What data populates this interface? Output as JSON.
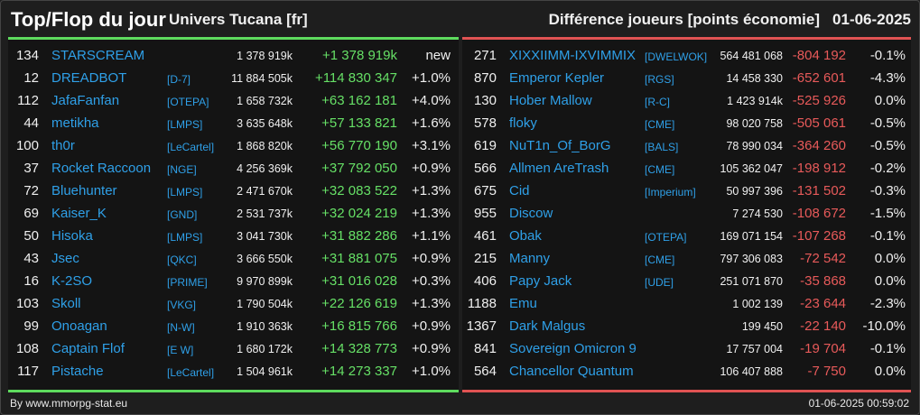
{
  "header": {
    "title": "Top/Flop du jour",
    "universe": "Univers Tucana [fr]",
    "difference_label": "Différence joueurs [points économie]",
    "date": "01-06-2025"
  },
  "colors": {
    "top_accent": "#5edb5e",
    "flop_accent": "#e05353",
    "link": "#2fa0e8",
    "positive": "#66e066",
    "negative": "#e85a5a"
  },
  "top": [
    {
      "rank": "134",
      "name": "STARSCREAM",
      "alliance": "",
      "points": "1 378 919k",
      "delta": "+1 378 919k",
      "pct": "new"
    },
    {
      "rank": "12",
      "name": "DREADBOT",
      "alliance": "[D-7]",
      "points": "11 884 505k",
      "delta": "+114 830 347",
      "pct": "+1.0%"
    },
    {
      "rank": "112",
      "name": "JafaFanfan",
      "alliance": "[OTEPA]",
      "points": "1 658 732k",
      "delta": "+63 162 181",
      "pct": "+4.0%"
    },
    {
      "rank": "44",
      "name": "metikha",
      "alliance": "[LMPS]",
      "points": "3 635 648k",
      "delta": "+57 133 821",
      "pct": "+1.6%"
    },
    {
      "rank": "100",
      "name": "th0r",
      "alliance": "[LeCartel]",
      "points": "1 868 820k",
      "delta": "+56 770 190",
      "pct": "+3.1%"
    },
    {
      "rank": "37",
      "name": "Rocket Raccoon",
      "alliance": "[NGE]",
      "points": "4 256 369k",
      "delta": "+37 792 050",
      "pct": "+0.9%"
    },
    {
      "rank": "72",
      "name": "Bluehunter",
      "alliance": "[LMPS]",
      "points": "2 471 670k",
      "delta": "+32 083 522",
      "pct": "+1.3%"
    },
    {
      "rank": "69",
      "name": "Kaiser_K",
      "alliance": "[GND]",
      "points": "2 531 737k",
      "delta": "+32 024 219",
      "pct": "+1.3%"
    },
    {
      "rank": "50",
      "name": "Hisoka",
      "alliance": "[LMPS]",
      "points": "3 041 730k",
      "delta": "+31 882 286",
      "pct": "+1.1%"
    },
    {
      "rank": "43",
      "name": "Jsec",
      "alliance": "[QKC]",
      "points": "3 666 550k",
      "delta": "+31 881 075",
      "pct": "+0.9%"
    },
    {
      "rank": "16",
      "name": "K-2SO",
      "alliance": "[PRIME]",
      "points": "9 970 899k",
      "delta": "+31 016 028",
      "pct": "+0.3%"
    },
    {
      "rank": "103",
      "name": "Skoll",
      "alliance": "[VKG]",
      "points": "1 790 504k",
      "delta": "+22 126 619",
      "pct": "+1.3%"
    },
    {
      "rank": "99",
      "name": "Onoagan",
      "alliance": "[N-W]",
      "points": "1 910 363k",
      "delta": "+16 815 766",
      "pct": "+0.9%"
    },
    {
      "rank": "108",
      "name": "Captain Flof",
      "alliance": "[E W]",
      "points": "1 680 172k",
      "delta": "+14 328 773",
      "pct": "+0.9%"
    },
    {
      "rank": "117",
      "name": "Pistache",
      "alliance": "[LeCartel]",
      "points": "1 504 961k",
      "delta": "+14 273 337",
      "pct": "+1.0%"
    }
  ],
  "flop": [
    {
      "rank": "271",
      "name": "XIXXIIMM-IXVIMMIX",
      "alliance": "[DWELWOK]",
      "points": "564 481 068",
      "delta": "-804 192",
      "pct": "-0.1%"
    },
    {
      "rank": "870",
      "name": "Emperor Kepler",
      "alliance": "[RGS]",
      "points": "14 458 330",
      "delta": "-652 601",
      "pct": "-4.3%"
    },
    {
      "rank": "130",
      "name": "Hober Mallow",
      "alliance": "[R-C]",
      "points": "1 423 914k",
      "delta": "-525 926",
      "pct": "0.0%"
    },
    {
      "rank": "578",
      "name": "floky",
      "alliance": "[CME]",
      "points": "98 020 758",
      "delta": "-505 061",
      "pct": "-0.5%"
    },
    {
      "rank": "619",
      "name": "NuT1n_Of_BorG",
      "alliance": "[BALS]",
      "points": "78 990 034",
      "delta": "-364 260",
      "pct": "-0.5%"
    },
    {
      "rank": "566",
      "name": "Allmen AreTrash",
      "alliance": "[CME]",
      "points": "105 362 047",
      "delta": "-198 912",
      "pct": "-0.2%"
    },
    {
      "rank": "675",
      "name": "Cid",
      "alliance": "[Imperium]",
      "points": "50 997 396",
      "delta": "-131 502",
      "pct": "-0.3%"
    },
    {
      "rank": "955",
      "name": "Discow",
      "alliance": "",
      "points": "7 274 530",
      "delta": "-108 672",
      "pct": "-1.5%"
    },
    {
      "rank": "461",
      "name": "Obak",
      "alliance": "[OTEPA]",
      "points": "169 071 154",
      "delta": "-107 268",
      "pct": "-0.1%"
    },
    {
      "rank": "215",
      "name": "Manny",
      "alliance": "[CME]",
      "points": "797 306 083",
      "delta": "-72 542",
      "pct": "0.0%"
    },
    {
      "rank": "406",
      "name": "Papy Jack",
      "alliance": "[UDE]",
      "points": "251 071 870",
      "delta": "-35 868",
      "pct": "0.0%"
    },
    {
      "rank": "1188",
      "name": "Emu",
      "alliance": "",
      "points": "1 002 139",
      "delta": "-23 644",
      "pct": "-2.3%"
    },
    {
      "rank": "1367",
      "name": "Dark Malgus",
      "alliance": "",
      "points": "199 450",
      "delta": "-22 140",
      "pct": "-10.0%"
    },
    {
      "rank": "841",
      "name": "Sovereign Omicron 9",
      "alliance": "",
      "points": "17 757 004",
      "delta": "-19 704",
      "pct": "-0.1%"
    },
    {
      "rank": "564",
      "name": "Chancellor Quantum",
      "alliance": "",
      "points": "106 407 888",
      "delta": "-7 750",
      "pct": "0.0%"
    }
  ],
  "footer": {
    "source": "By www.mmorpg-stat.eu",
    "timestamp": "01-06-2025 00:59:02"
  }
}
